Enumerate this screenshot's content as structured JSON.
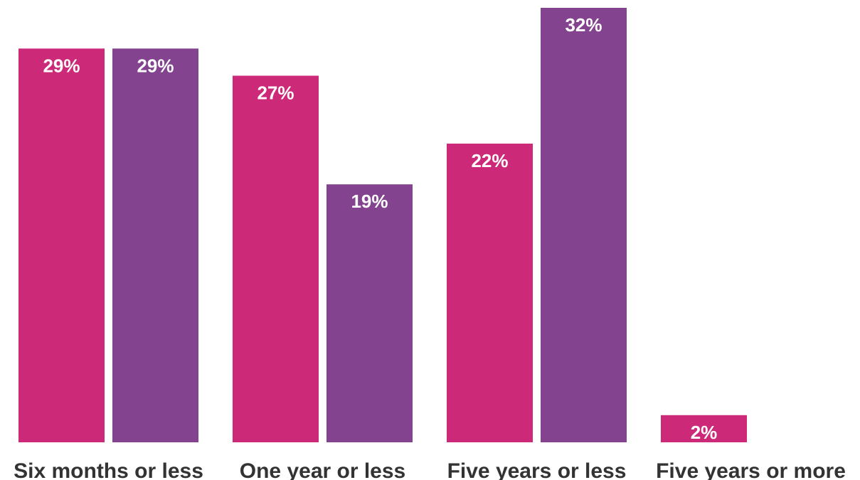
{
  "chart_data": {
    "type": "bar",
    "categories": [
      "Six months or less",
      "One year or less",
      "Five years or less",
      "Five years or more"
    ],
    "series": [
      {
        "values": [
          29,
          27,
          22,
          2
        ],
        "labels": [
          "29%",
          "27%",
          "22%",
          "2%"
        ],
        "color": "#CC2A78"
      },
      {
        "values": [
          29,
          19,
          32,
          null
        ],
        "labels": [
          "29%",
          "19%",
          "32%",
          ""
        ],
        "color": "#84438F"
      }
    ],
    "title": "",
    "xlabel": "",
    "ylabel": "",
    "ylim": [
      0,
      32
    ],
    "grid": false,
    "legend": "none"
  }
}
